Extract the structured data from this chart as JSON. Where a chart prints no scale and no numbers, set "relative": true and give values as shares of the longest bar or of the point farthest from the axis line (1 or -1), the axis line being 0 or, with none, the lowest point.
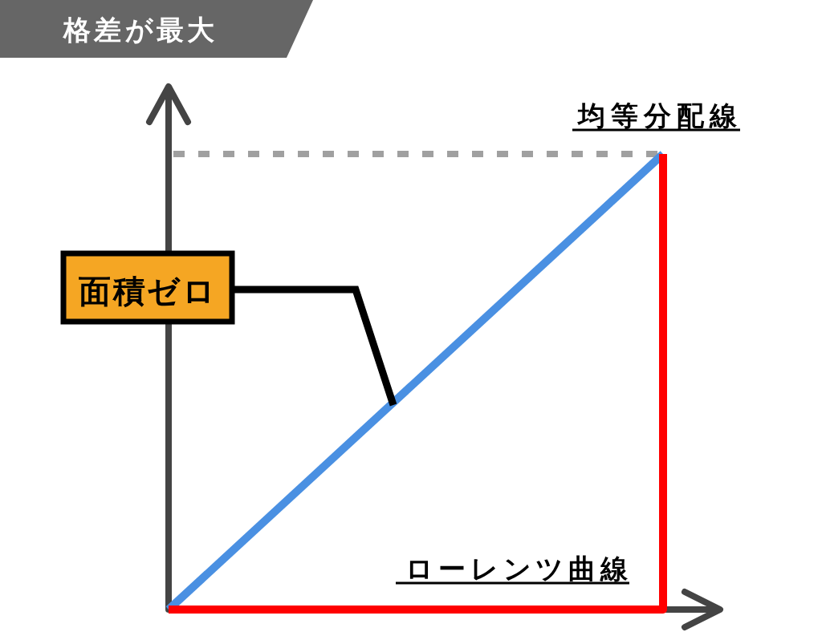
{
  "chart_data": {
    "type": "line",
    "title": "格差が最大",
    "relative": true,
    "categories": [
      null,
      null
    ],
    "series": [
      {
        "name": "均等分配線",
        "color": "#4a90e2",
        "values": [
          0,
          1
        ]
      },
      {
        "name": "ローレンツ曲線",
        "type": "step",
        "color": "#ff0000",
        "values": [
          0,
          1
        ]
      }
    ],
    "ref_lines": [
      {
        "axis": "y",
        "value": 1,
        "color": "#a0a0a0",
        "line_style": "dashed"
      }
    ],
    "annotations": [
      "面積ゼロ"
    ]
  }
}
